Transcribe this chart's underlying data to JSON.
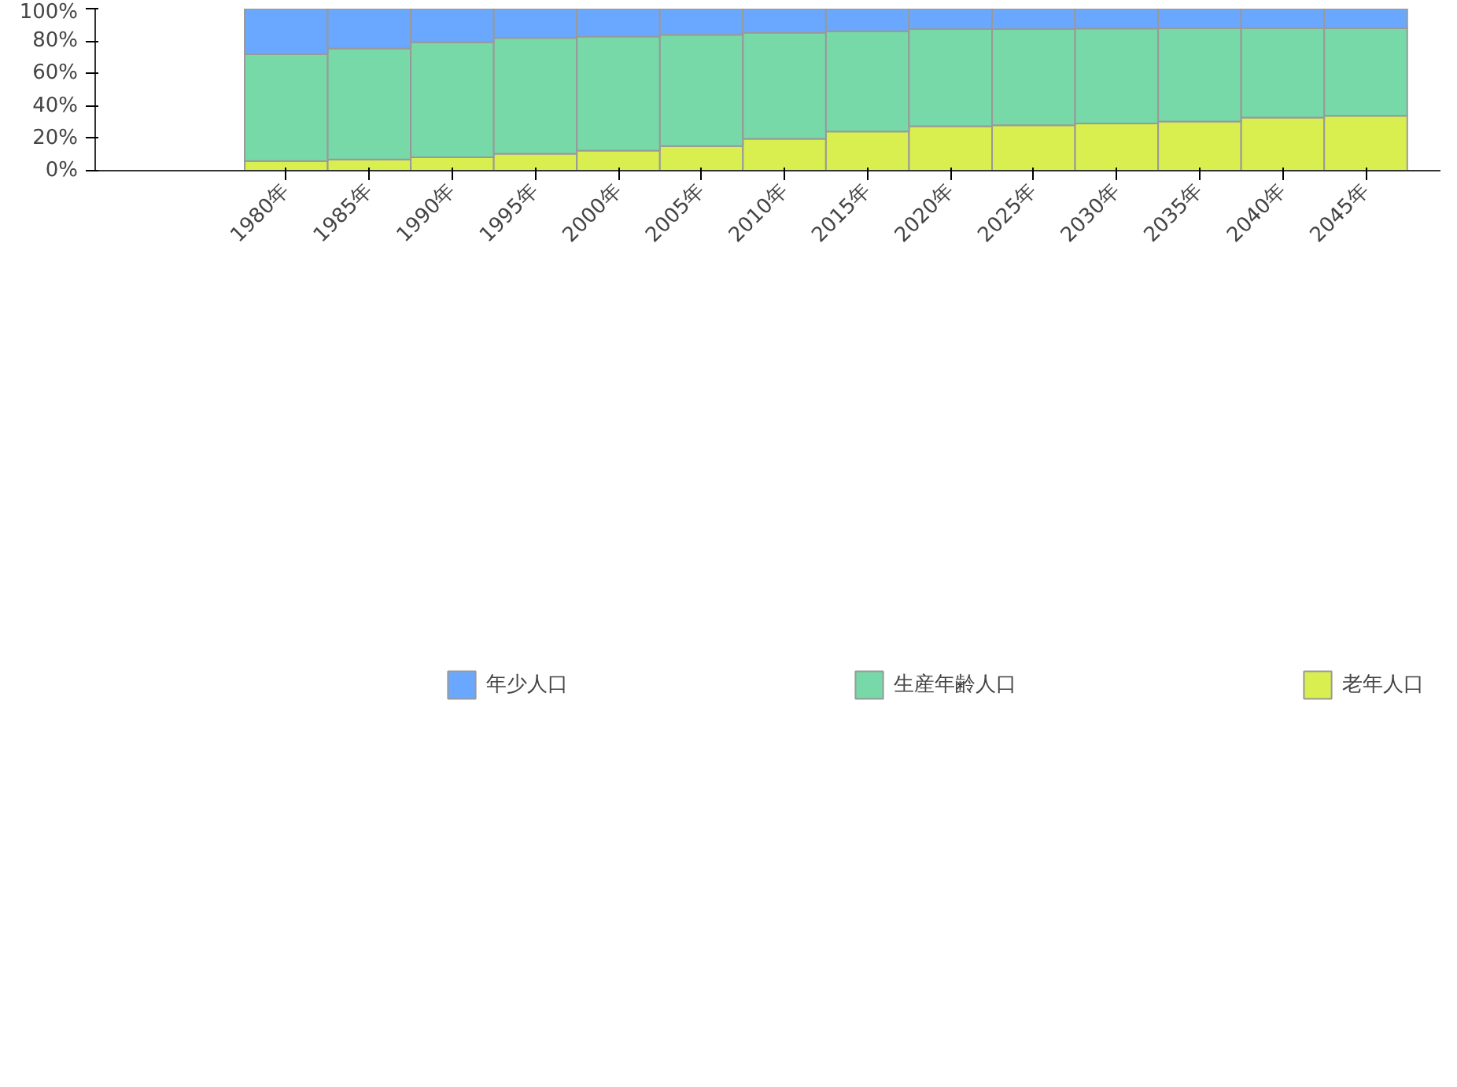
{
  "chart_data": {
    "type": "bar",
    "stacked": true,
    "categories": [
      "1980年",
      "1985年",
      "1990年",
      "1995年",
      "2000年",
      "2005年",
      "2010年",
      "2015年",
      "2020年",
      "2025年",
      "2030年",
      "2035年",
      "2040年",
      "2045年"
    ],
    "series": [
      {
        "name": "老年人口",
        "color": "#d9ef4f",
        "values": [
          5.9,
          6.9,
          8.3,
          10.4,
          12.4,
          15.2,
          19.6,
          24.1,
          27.4,
          28.0,
          29.1,
          30.4,
          32.8,
          33.9
        ]
      },
      {
        "name": "生産年齢人口",
        "color": "#77d9a8",
        "values": [
          66.1,
          68.5,
          71.0,
          71.5,
          70.4,
          68.7,
          65.6,
          62.0,
          60.0,
          59.4,
          58.7,
          57.6,
          55.2,
          54.1
        ]
      },
      {
        "name": "年少人口",
        "color": "#6aa8ff",
        "values": [
          28.0,
          24.6,
          20.7,
          18.1,
          17.2,
          16.1,
          14.8,
          13.9,
          12.6,
          12.6,
          12.2,
          12.0,
          12.0,
          12.0
        ]
      }
    ],
    "ylim": [
      0,
      100
    ],
    "yticks": [
      {
        "value": 0,
        "label": "0%"
      },
      {
        "value": 20,
        "label": "20%"
      },
      {
        "value": 40,
        "label": "40%"
      },
      {
        "value": 60,
        "label": "60%"
      },
      {
        "value": 80,
        "label": "80%"
      },
      {
        "value": 100,
        "label": "100%"
      }
    ],
    "grid": false,
    "legend": "bottom"
  }
}
